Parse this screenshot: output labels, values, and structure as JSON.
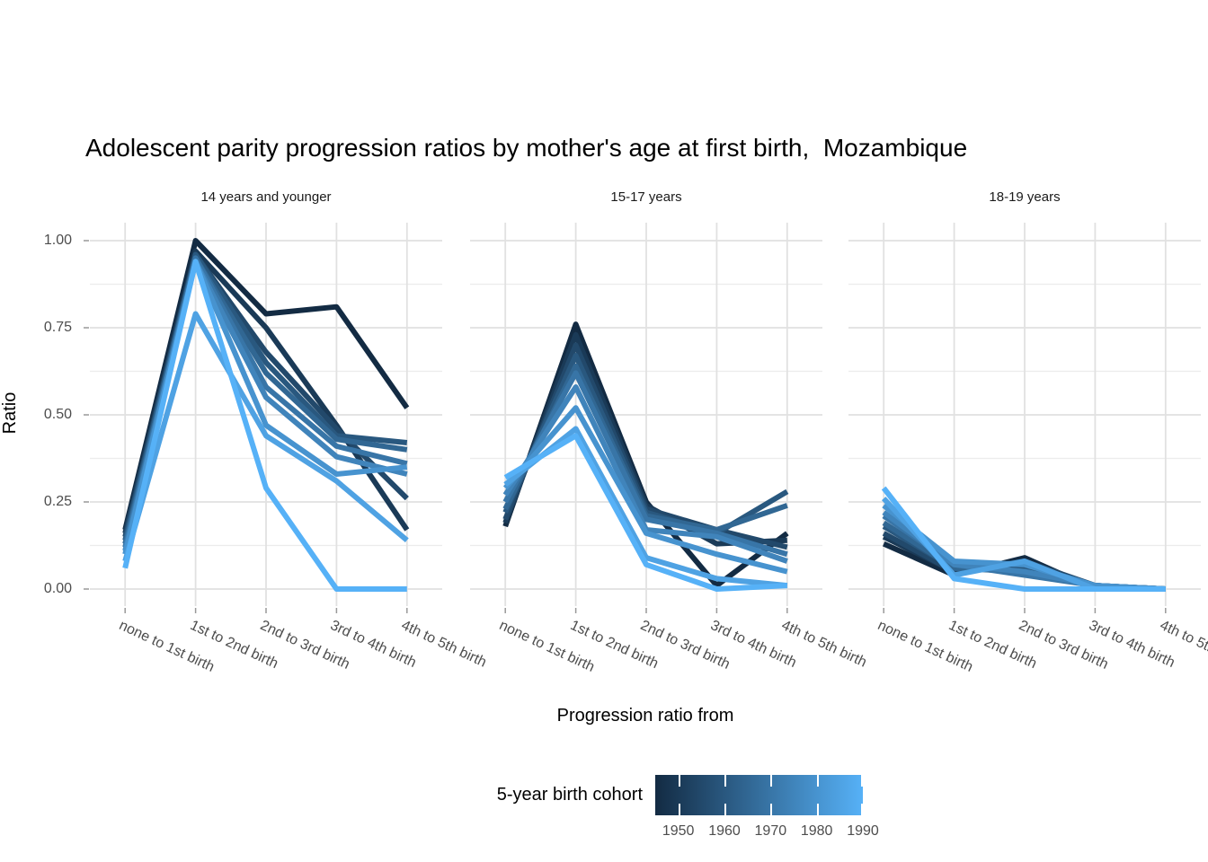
{
  "page": {
    "background": "#ffffff"
  },
  "chart_data": {
    "type": "line",
    "title": "Adolescent parity progression ratios by mother's age at first birth,  Mozambique",
    "xlabel": "Progression ratio from",
    "ylabel": "Ratio",
    "ylim": [
      0,
      1
    ],
    "y_ticks": [
      0.0,
      0.25,
      0.5,
      0.75,
      1.0
    ],
    "y_tick_labels": [
      "0.00",
      "0.25",
      "0.50",
      "0.75",
      "1.00"
    ],
    "grid": "major and minor horizontal gridlines, major vertical gridlines, light gray on white",
    "legend_position": "bottom",
    "categories": [
      "none to 1st birth",
      "1st to 2nd birth",
      "2nd to 3rd birth",
      "3rd to 4th birth",
      "4th to 5th birth"
    ],
    "legend": {
      "title": "5-year birth cohort",
      "type": "colorbar",
      "domain": [
        1945,
        1990
      ],
      "tick_values": [
        1950,
        1960,
        1970,
        1980,
        1990
      ],
      "tick_labels": [
        "1950",
        "1960",
        "1970",
        "1980",
        "1990"
      ],
      "low_color": "#132B43",
      "high_color": "#56B1F7"
    },
    "cohorts": [
      1945,
      1950,
      1955,
      1960,
      1965,
      1970,
      1975,
      1980,
      1985,
      1990
    ],
    "cohort_colors": [
      "#132B43",
      "#1A3A57",
      "#22496B",
      "#29587F",
      "#316793",
      "#3875A7",
      "#4084BB",
      "#4793CF",
      "#4FA2E3",
      "#56B1F7"
    ],
    "facets": [
      {
        "label": "14 years and younger",
        "series": [
          {
            "cohort": 1945,
            "color": "#132B43",
            "values": [
              0.17,
              1.0,
              0.79,
              0.81,
              0.52
            ]
          },
          {
            "cohort": 1950,
            "color": "#1A3A57",
            "values": [
              0.16,
              0.97,
              0.75,
              0.47,
              0.17
            ]
          },
          {
            "cohort": 1955,
            "color": "#22496B",
            "values": [
              0.15,
              0.96,
              0.68,
              0.46,
              0.26
            ]
          },
          {
            "cohort": 1960,
            "color": "#29587F",
            "values": [
              0.14,
              0.96,
              0.65,
              0.44,
              0.42
            ]
          },
          {
            "cohort": 1965,
            "color": "#316793",
            "values": [
              0.13,
              0.95,
              0.62,
              0.43,
              0.4
            ]
          },
          {
            "cohort": 1970,
            "color": "#3875A7",
            "values": [
              0.12,
              0.95,
              0.58,
              0.41,
              0.36
            ]
          },
          {
            "cohort": 1975,
            "color": "#4084BB",
            "values": [
              0.11,
              0.94,
              0.55,
              0.38,
              0.33
            ]
          },
          {
            "cohort": 1980,
            "color": "#4793CF",
            "values": [
              0.1,
              0.94,
              0.47,
              0.33,
              0.35
            ]
          },
          {
            "cohort": 1985,
            "color": "#4FA2E3",
            "values": [
              0.08,
              0.79,
              0.44,
              0.31,
              0.14
            ]
          },
          {
            "cohort": 1990,
            "color": "#56B1F7",
            "values": [
              0.06,
              0.94,
              0.29,
              0.0,
              0.0
            ]
          }
        ]
      },
      {
        "label": "15-17 years",
        "series": [
          {
            "cohort": 1945,
            "color": "#132B43",
            "values": [
              0.18,
              0.76,
              0.25,
              0.01,
              0.16
            ]
          },
          {
            "cohort": 1950,
            "color": "#1A3A57",
            "values": [
              0.19,
              0.73,
              0.24,
              0.13,
              0.14
            ]
          },
          {
            "cohort": 1955,
            "color": "#22496B",
            "values": [
              0.2,
              0.7,
              0.23,
              0.17,
              0.12
            ]
          },
          {
            "cohort": 1960,
            "color": "#29587F",
            "values": [
              0.22,
              0.67,
              0.22,
              0.16,
              0.28
            ]
          },
          {
            "cohort": 1965,
            "color": "#316793",
            "values": [
              0.23,
              0.64,
              0.21,
              0.17,
              0.24
            ]
          },
          {
            "cohort": 1970,
            "color": "#3875A7",
            "values": [
              0.25,
              0.62,
              0.2,
              0.16,
              0.1
            ]
          },
          {
            "cohort": 1975,
            "color": "#4084BB",
            "values": [
              0.27,
              0.58,
              0.17,
              0.15,
              0.08
            ]
          },
          {
            "cohort": 1980,
            "color": "#4793CF",
            "values": [
              0.29,
              0.52,
              0.16,
              0.1,
              0.05
            ]
          },
          {
            "cohort": 1985,
            "color": "#4FA2E3",
            "values": [
              0.3,
              0.46,
              0.09,
              0.03,
              0.01
            ]
          },
          {
            "cohort": 1990,
            "color": "#56B1F7",
            "values": [
              0.32,
              0.44,
              0.07,
              0.0,
              0.01
            ]
          }
        ]
      },
      {
        "label": "18-19 years",
        "series": [
          {
            "cohort": 1945,
            "color": "#132B43",
            "values": [
              0.13,
              0.04,
              0.09,
              0.0,
              0.0
            ]
          },
          {
            "cohort": 1950,
            "color": "#1A3A57",
            "values": [
              0.15,
              0.05,
              0.08,
              0.0,
              0.0
            ]
          },
          {
            "cohort": 1955,
            "color": "#22496B",
            "values": [
              0.16,
              0.05,
              0.08,
              0.01,
              0.0
            ]
          },
          {
            "cohort": 1960,
            "color": "#29587F",
            "values": [
              0.18,
              0.06,
              0.06,
              0.01,
              0.0
            ]
          },
          {
            "cohort": 1965,
            "color": "#316793",
            "values": [
              0.19,
              0.06,
              0.05,
              0.01,
              0.0
            ]
          },
          {
            "cohort": 1970,
            "color": "#3875A7",
            "values": [
              0.21,
              0.07,
              0.04,
              0.01,
              0.0
            ]
          },
          {
            "cohort": 1975,
            "color": "#4084BB",
            "values": [
              0.22,
              0.07,
              0.05,
              0.01,
              0.0
            ]
          },
          {
            "cohort": 1980,
            "color": "#4793CF",
            "values": [
              0.24,
              0.08,
              0.07,
              0.01,
              0.0
            ]
          },
          {
            "cohort": 1985,
            "color": "#4FA2E3",
            "values": [
              0.26,
              0.04,
              0.08,
              0.0,
              0.0
            ]
          },
          {
            "cohort": 1990,
            "color": "#56B1F7",
            "values": [
              0.29,
              0.03,
              0.0,
              0.0,
              0.0
            ]
          }
        ]
      }
    ]
  }
}
